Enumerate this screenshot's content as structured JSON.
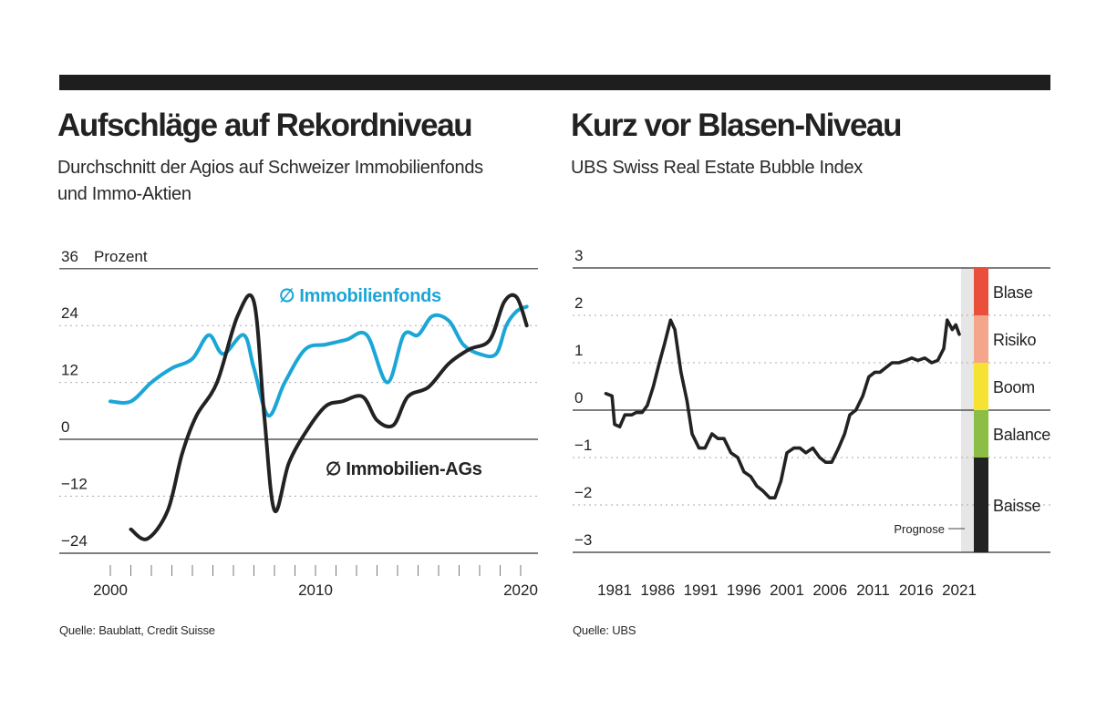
{
  "left": {
    "title": "Aufschläge auf Rekordniveau",
    "subtitle_line1": "Durchschnitt der Agios auf Schweizer Immobilienfonds",
    "subtitle_line2": "und Immo-Aktien",
    "source": "Quelle: Baublatt, Credit Suisse"
  },
  "right": {
    "title": "Kurz vor Blasen-Niveau",
    "subtitle": "UBS Swiss Real Estate Bubble Index",
    "source": "Quelle: UBS"
  },
  "chart_data": [
    {
      "type": "line",
      "title": "Aufschläge auf Rekordniveau",
      "ylabel": "Prozent",
      "xlabel": "",
      "ylim": [
        -24,
        36
      ],
      "yticks": [
        -24,
        -12,
        0,
        12,
        24,
        36
      ],
      "xlim": [
        2000,
        2020.5
      ],
      "xticks": [
        2000,
        2010,
        2020
      ],
      "colors": {
        "Immobilienfonds": "#1aa6d6",
        "Immobilien-AGs": "#222222"
      },
      "series": [
        {
          "name": "Immobilienfonds",
          "label": "∅ Immobilienfonds",
          "x": [
            2000,
            2001,
            2002,
            2003,
            2004,
            2004.8,
            2005.5,
            2006.5,
            2007,
            2007.7,
            2008.5,
            2009.5,
            2010.5,
            2011.5,
            2012.5,
            2013.5,
            2014.3,
            2015,
            2015.7,
            2016.5,
            2017.2,
            2018,
            2018.8,
            2019.3,
            2019.8,
            2020.3
          ],
          "values": [
            8,
            8,
            12,
            15,
            17,
            22,
            18,
            22,
            15,
            5,
            12,
            19,
            20,
            21,
            22,
            12,
            22,
            22,
            26,
            25,
            20,
            18,
            18,
            24,
            27,
            28
          ]
        },
        {
          "name": "Immobilien-AGs",
          "label": "∅ Immobilien-AGs",
          "x": [
            2001,
            2001.8,
            2002.8,
            2003.5,
            2004.2,
            2005.2,
            2006.2,
            2007,
            2007.5,
            2008,
            2008.7,
            2009.6,
            2010.5,
            2011.3,
            2012.3,
            2013,
            2013.8,
            2014.5,
            2015.5,
            2016.5,
            2017.5,
            2018.5,
            2019.2,
            2019.8,
            2020.3
          ],
          "values": [
            -19,
            -21,
            -15,
            -3,
            5,
            12,
            26,
            29,
            5,
            -15,
            -5,
            2,
            7,
            8,
            9,
            4,
            3,
            9,
            11,
            16,
            19,
            21,
            29,
            30,
            24
          ]
        }
      ]
    },
    {
      "type": "line",
      "title": "Kurz vor Blasen-Niveau",
      "ylabel": "",
      "xlabel": "",
      "ylim": [
        -3,
        3
      ],
      "yticks": [
        -3,
        -2,
        -1,
        0,
        1,
        2,
        3
      ],
      "xlim": [
        1979.2,
        2023
      ],
      "xticks": [
        1981,
        1986,
        1991,
        1996,
        2001,
        2006,
        2011,
        2016,
        2021
      ],
      "forecast_label": "Prognose",
      "forecast_start": 2020.2,
      "series": [
        {
          "name": "UBS Swiss Real Estate Bubble Index",
          "x": [
            1980,
            1980.7,
            1981,
            1981.6,
            1982.2,
            1983,
            1983.5,
            1984.2,
            1984.8,
            1985.5,
            1986.2,
            1986.8,
            1987.5,
            1988,
            1988.7,
            1989.4,
            1990,
            1990.8,
            1991.5,
            1992.3,
            1993,
            1993.7,
            1994.5,
            1995.3,
            1996,
            1996.8,
            1997.5,
            1998.2,
            1999,
            1999.6,
            2000.3,
            2001,
            2001.8,
            2002.5,
            2003.2,
            2004,
            2004.8,
            2005.5,
            2006.2,
            2007,
            2007.7,
            2008.3,
            2009,
            2009.8,
            2010.5,
            2011.2,
            2011.8,
            2012.5,
            2013.2,
            2014,
            2014.8,
            2015.5,
            2016.2,
            2017,
            2017.8,
            2018.5,
            2019.2,
            2019.6,
            2020.2,
            2020.6,
            2021
          ],
          "values": [
            0.35,
            0.3,
            -0.3,
            -0.35,
            -0.1,
            -0.1,
            -0.05,
            -0.05,
            0.1,
            0.5,
            1.0,
            1.4,
            1.9,
            1.7,
            0.8,
            0.2,
            -0.5,
            -0.8,
            -0.8,
            -0.5,
            -0.6,
            -0.6,
            -0.9,
            -1.0,
            -1.3,
            -1.4,
            -1.6,
            -1.7,
            -1.85,
            -1.85,
            -1.5,
            -0.9,
            -0.8,
            -0.8,
            -0.9,
            -0.8,
            -1.0,
            -1.1,
            -1.1,
            -0.8,
            -0.5,
            -0.1,
            0.0,
            0.3,
            0.7,
            0.8,
            0.8,
            0.9,
            1.0,
            1.0,
            1.05,
            1.1,
            1.05,
            1.1,
            1.0,
            1.05,
            1.3,
            1.9,
            1.7,
            1.8,
            1.6
          ]
        }
      ],
      "zones": [
        {
          "label": "Blase",
          "from": 2,
          "to": 3,
          "color": "#e94f3a"
        },
        {
          "label": "Risiko",
          "from": 1,
          "to": 2,
          "color": "#f4a58c"
        },
        {
          "label": "Boom",
          "from": 0,
          "to": 1,
          "color": "#f5e232"
        },
        {
          "label": "Balance",
          "from": -1,
          "to": 0,
          "color": "#8cbd45"
        },
        {
          "label": "Baisse",
          "from": -3,
          "to": -1,
          "color": "#222222"
        }
      ]
    }
  ]
}
